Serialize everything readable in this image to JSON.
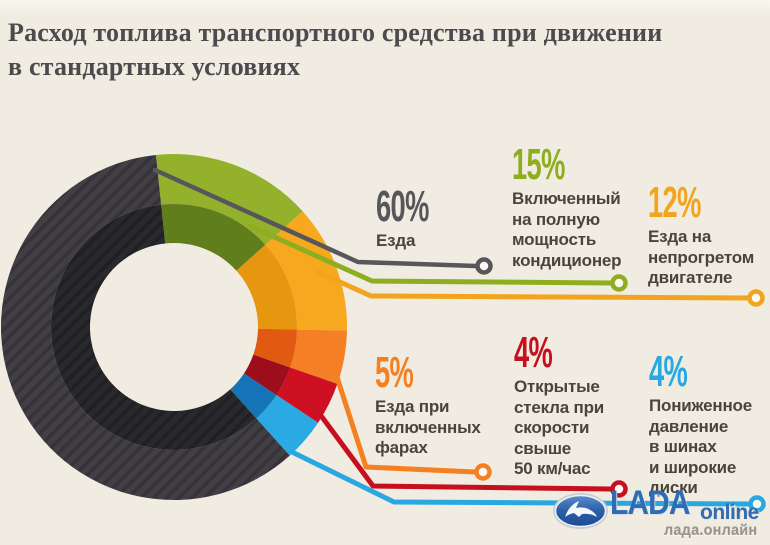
{
  "title": {
    "line1": "Расход топлива транспортного средства при движении",
    "line2": "в стандартных условиях"
  },
  "chart_data": {
    "type": "pie",
    "subtype": "donut",
    "unit": "%",
    "title": "Расход топлива транспортного средства при движении в стандартных условиях",
    "slices": [
      {
        "id": "air-conditioner",
        "value": 15,
        "pct": "15%",
        "label": "Включенный\nна полную\nмощность\nкондиционер",
        "accent": "#8fae1f",
        "color_outer": "#93b12b",
        "color_inner": "#617e1c"
      },
      {
        "id": "cold-engine",
        "value": 12,
        "pct": "12%",
        "label": "Езда на\nнепрогретом\nдвигателе",
        "accent": "#f2a41e",
        "color_outer": "#f6a81f",
        "color_inner": "#e6960f"
      },
      {
        "id": "headlights-on",
        "value": 5,
        "pct": "5%",
        "label": "Езда при\nвключенных\nфарах",
        "accent": "#f58022",
        "color_outer": "#f57f25",
        "color_inner": "#e05a12"
      },
      {
        "id": "open-windows",
        "value": 4,
        "pct": "4%",
        "label": "Открытые\nстекла при\nскорости\nсвыше\n50 км/час",
        "accent": "#c6101f",
        "color_outer": "#ce1122",
        "color_inner": "#9e0d1b"
      },
      {
        "id": "low-tire-pressure",
        "value": 4,
        "pct": "4%",
        "label": "Пониженное\nдавление\nв шинах\nи широкие\nдиски",
        "accent": "#29a7e1",
        "color_outer": "#2aa9e2",
        "color_inner": "#1573b8"
      },
      {
        "id": "driving",
        "value": 60,
        "pct": "60%",
        "label": "Езда",
        "accent": "#57565a",
        "color_outer": "#413f44",
        "color_inner": "#29282c",
        "hatch": true
      }
    ]
  },
  "logo": {
    "brand": "LADA",
    "suffix": "online",
    "domain": "лада.онлайн"
  },
  "colors": {
    "background": "#f0ece1",
    "title_text": "#4b4b4d",
    "label_text": "#4a443c"
  }
}
